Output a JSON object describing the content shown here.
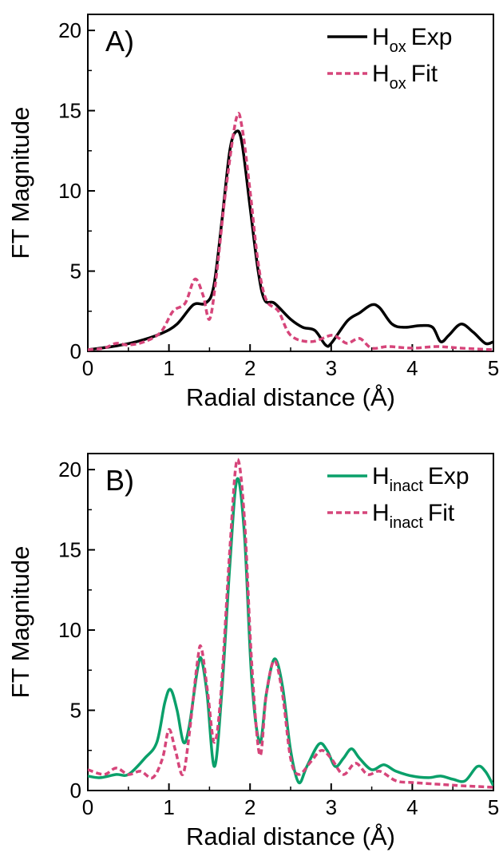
{
  "chart_data": [
    {
      "type": "line",
      "panel_label": "A)",
      "xlabel": "Radial distance (Å)",
      "ylabel": "FT Magnitude",
      "xlim": [
        0,
        5
      ],
      "ylim": [
        0,
        21
      ],
      "xticks": [
        0,
        1,
        2,
        3,
        4,
        5
      ],
      "yticks": [
        0,
        5,
        10,
        15,
        20
      ],
      "grid": false,
      "legend_position": "top-right",
      "series": [
        {
          "name": "Hox Exp",
          "name_main": "H",
          "name_sub": "ox",
          "name_rest": "Exp",
          "color": "#000000",
          "style": "solid",
          "points": [
            [
              0,
              0.1
            ],
            [
              0.3,
              0.3
            ],
            [
              0.6,
              0.6
            ],
            [
              0.9,
              1.1
            ],
            [
              1.1,
              1.7
            ],
            [
              1.3,
              2.9
            ],
            [
              1.45,
              3.0
            ],
            [
              1.55,
              4.0
            ],
            [
              1.65,
              8.0
            ],
            [
              1.75,
              12.5
            ],
            [
              1.83,
              13.7
            ],
            [
              1.9,
              13.0
            ],
            [
              2.0,
              9.0
            ],
            [
              2.1,
              5.0
            ],
            [
              2.18,
              3.2
            ],
            [
              2.3,
              3.0
            ],
            [
              2.5,
              2.0
            ],
            [
              2.65,
              1.5
            ],
            [
              2.8,
              1.3
            ],
            [
              2.93,
              0.4
            ],
            [
              3.0,
              0.5
            ],
            [
              3.2,
              1.9
            ],
            [
              3.35,
              2.4
            ],
            [
              3.5,
              2.9
            ],
            [
              3.6,
              2.7
            ],
            [
              3.75,
              1.7
            ],
            [
              3.9,
              1.5
            ],
            [
              4.1,
              1.6
            ],
            [
              4.25,
              1.5
            ],
            [
              4.35,
              0.6
            ],
            [
              4.45,
              1.0
            ],
            [
              4.6,
              1.7
            ],
            [
              4.75,
              1.2
            ],
            [
              4.9,
              0.5
            ],
            [
              5.0,
              0.6
            ]
          ]
        },
        {
          "name": "Hox Fit",
          "name_main": "H",
          "name_sub": "ox",
          "name_rest": "Fit",
          "color": "#d6457a",
          "style": "dashed",
          "points": [
            [
              0,
              0.1
            ],
            [
              0.2,
              0.2
            ],
            [
              0.35,
              0.5
            ],
            [
              0.5,
              0.4
            ],
            [
              0.7,
              0.6
            ],
            [
              0.9,
              1.2
            ],
            [
              1.05,
              2.5
            ],
            [
              1.2,
              3.0
            ],
            [
              1.32,
              4.5
            ],
            [
              1.42,
              3.5
            ],
            [
              1.5,
              2.0
            ],
            [
              1.58,
              4.5
            ],
            [
              1.7,
              10.0
            ],
            [
              1.83,
              14.5
            ],
            [
              1.9,
              14.0
            ],
            [
              2.0,
              10.0
            ],
            [
              2.1,
              5.5
            ],
            [
              2.2,
              3.2
            ],
            [
              2.35,
              2.5
            ],
            [
              2.5,
              1.0
            ],
            [
              2.75,
              0.6
            ],
            [
              3.0,
              1.0
            ],
            [
              3.1,
              0.8
            ],
            [
              3.2,
              0.5
            ],
            [
              3.35,
              0.8
            ],
            [
              3.5,
              0.2
            ],
            [
              3.7,
              0.3
            ],
            [
              4.0,
              0.2
            ],
            [
              4.3,
              0.3
            ],
            [
              4.6,
              0.2
            ],
            [
              5.0,
              0.1
            ]
          ]
        }
      ]
    },
    {
      "type": "line",
      "panel_label": "B)",
      "xlabel": "Radial distance (Å)",
      "ylabel": "FT Magnitude",
      "xlim": [
        0,
        5
      ],
      "ylim": [
        0,
        21
      ],
      "xticks": [
        0,
        1,
        2,
        3,
        4,
        5
      ],
      "yticks": [
        0,
        5,
        10,
        15,
        20
      ],
      "grid": false,
      "legend_position": "top-right",
      "series": [
        {
          "name": "Hinact Exp",
          "name_main": "H",
          "name_sub": "inact",
          "name_rest": "Exp",
          "color": "#0aa06a",
          "style": "solid",
          "points": [
            [
              0,
              0.9
            ],
            [
              0.15,
              0.8
            ],
            [
              0.35,
              1.0
            ],
            [
              0.5,
              1.0
            ],
            [
              0.7,
              2.0
            ],
            [
              0.85,
              3.0
            ],
            [
              0.95,
              5.5
            ],
            [
              1.02,
              6.3
            ],
            [
              1.1,
              5.0
            ],
            [
              1.18,
              3.0
            ],
            [
              1.25,
              4.0
            ],
            [
              1.35,
              7.5
            ],
            [
              1.4,
              8.2
            ],
            [
              1.47,
              6.0
            ],
            [
              1.56,
              1.5
            ],
            [
              1.65,
              6.0
            ],
            [
              1.75,
              14.0
            ],
            [
              1.84,
              19.4
            ],
            [
              1.93,
              16.0
            ],
            [
              2.02,
              7.0
            ],
            [
              2.12,
              3.0
            ],
            [
              2.2,
              6.0
            ],
            [
              2.3,
              8.2
            ],
            [
              2.4,
              6.5
            ],
            [
              2.5,
              2.5
            ],
            [
              2.6,
              0.5
            ],
            [
              2.7,
              1.5
            ],
            [
              2.85,
              2.9
            ],
            [
              2.95,
              2.5
            ],
            [
              3.05,
              1.5
            ],
            [
              3.15,
              2.0
            ],
            [
              3.25,
              2.6
            ],
            [
              3.35,
              2.0
            ],
            [
              3.5,
              1.3
            ],
            [
              3.65,
              1.6
            ],
            [
              3.8,
              1.2
            ],
            [
              4.0,
              0.9
            ],
            [
              4.2,
              0.8
            ],
            [
              4.35,
              0.9
            ],
            [
              4.5,
              0.7
            ],
            [
              4.65,
              0.6
            ],
            [
              4.8,
              1.5
            ],
            [
              4.9,
              1.2
            ],
            [
              5.0,
              0.3
            ]
          ]
        },
        {
          "name": "Hinact Fit",
          "name_main": "H",
          "name_sub": "inact",
          "name_rest": "Fit",
          "color": "#d6457a",
          "style": "dashed",
          "points": [
            [
              0,
              1.3
            ],
            [
              0.2,
              1.0
            ],
            [
              0.35,
              1.4
            ],
            [
              0.5,
              1.0
            ],
            [
              0.65,
              1.2
            ],
            [
              0.8,
              0.8
            ],
            [
              0.92,
              2.0
            ],
            [
              1.0,
              3.8
            ],
            [
              1.08,
              2.5
            ],
            [
              1.17,
              1.0
            ],
            [
              1.25,
              3.5
            ],
            [
              1.35,
              8.0
            ],
            [
              1.4,
              8.9
            ],
            [
              1.48,
              6.0
            ],
            [
              1.56,
              3.0
            ],
            [
              1.64,
              6.0
            ],
            [
              1.75,
              15.0
            ],
            [
              1.84,
              20.6
            ],
            [
              1.93,
              17.0
            ],
            [
              2.02,
              8.0
            ],
            [
              2.12,
              2.2
            ],
            [
              2.2,
              6.0
            ],
            [
              2.3,
              8.1
            ],
            [
              2.4,
              6.0
            ],
            [
              2.5,
              2.0
            ],
            [
              2.6,
              1.0
            ],
            [
              2.75,
              1.8
            ],
            [
              2.88,
              2.5
            ],
            [
              3.0,
              2.0
            ],
            [
              3.15,
              1.0
            ],
            [
              3.3,
              1.7
            ],
            [
              3.45,
              1.0
            ],
            [
              3.6,
              1.2
            ],
            [
              3.8,
              0.6
            ],
            [
              4.0,
              0.5
            ],
            [
              4.3,
              0.4
            ],
            [
              4.6,
              0.3
            ],
            [
              5.0,
              0.2
            ]
          ]
        }
      ]
    }
  ]
}
